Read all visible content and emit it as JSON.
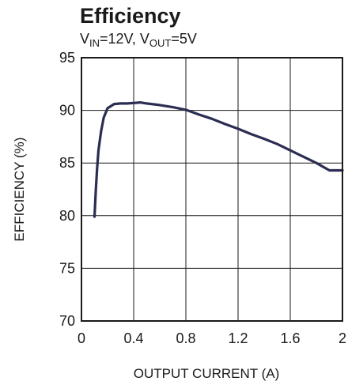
{
  "chart_data": {
    "type": "line",
    "title": "Efficiency",
    "subtitle": {
      "v_in_main": "V",
      "v_in_sub": "IN",
      "v_in_value": "=12V, ",
      "v_out_main": "V",
      "v_out_sub": "OUT",
      "v_out_value": "=5V"
    },
    "xlabel": "OUTPUT CURRENT (A)",
    "ylabel": "EFFICIENCY (%)",
    "xlim": [
      0,
      2
    ],
    "ylim": [
      70,
      95
    ],
    "x_ticks": [
      0,
      0.4,
      0.8,
      1.2,
      1.6,
      2
    ],
    "x_tick_labels": [
      "0",
      "0.4",
      "0.8",
      "1.2",
      "1.6",
      "2"
    ],
    "y_ticks": [
      70,
      75,
      80,
      85,
      90,
      95
    ],
    "y_tick_labels": [
      "70",
      "75",
      "80",
      "85",
      "90",
      "95"
    ],
    "grid": true,
    "series": [
      {
        "color": "#2b2d52",
        "x": [
          0.1,
          0.11,
          0.12,
          0.13,
          0.15,
          0.17,
          0.2,
          0.25,
          0.3,
          0.35,
          0.4,
          0.45,
          0.5,
          0.6,
          0.7,
          0.8,
          0.9,
          1.0,
          1.1,
          1.2,
          1.3,
          1.4,
          1.5,
          1.6,
          1.7,
          1.8,
          1.9,
          2.0
        ],
        "y": [
          79.9,
          82.5,
          84.5,
          86.2,
          88.0,
          89.3,
          90.2,
          90.6,
          90.65,
          90.65,
          90.7,
          90.75,
          90.65,
          90.5,
          90.3,
          90.05,
          89.6,
          89.2,
          88.7,
          88.25,
          87.75,
          87.3,
          86.8,
          86.2,
          85.6,
          85.0,
          84.3,
          84.3
        ]
      }
    ]
  }
}
